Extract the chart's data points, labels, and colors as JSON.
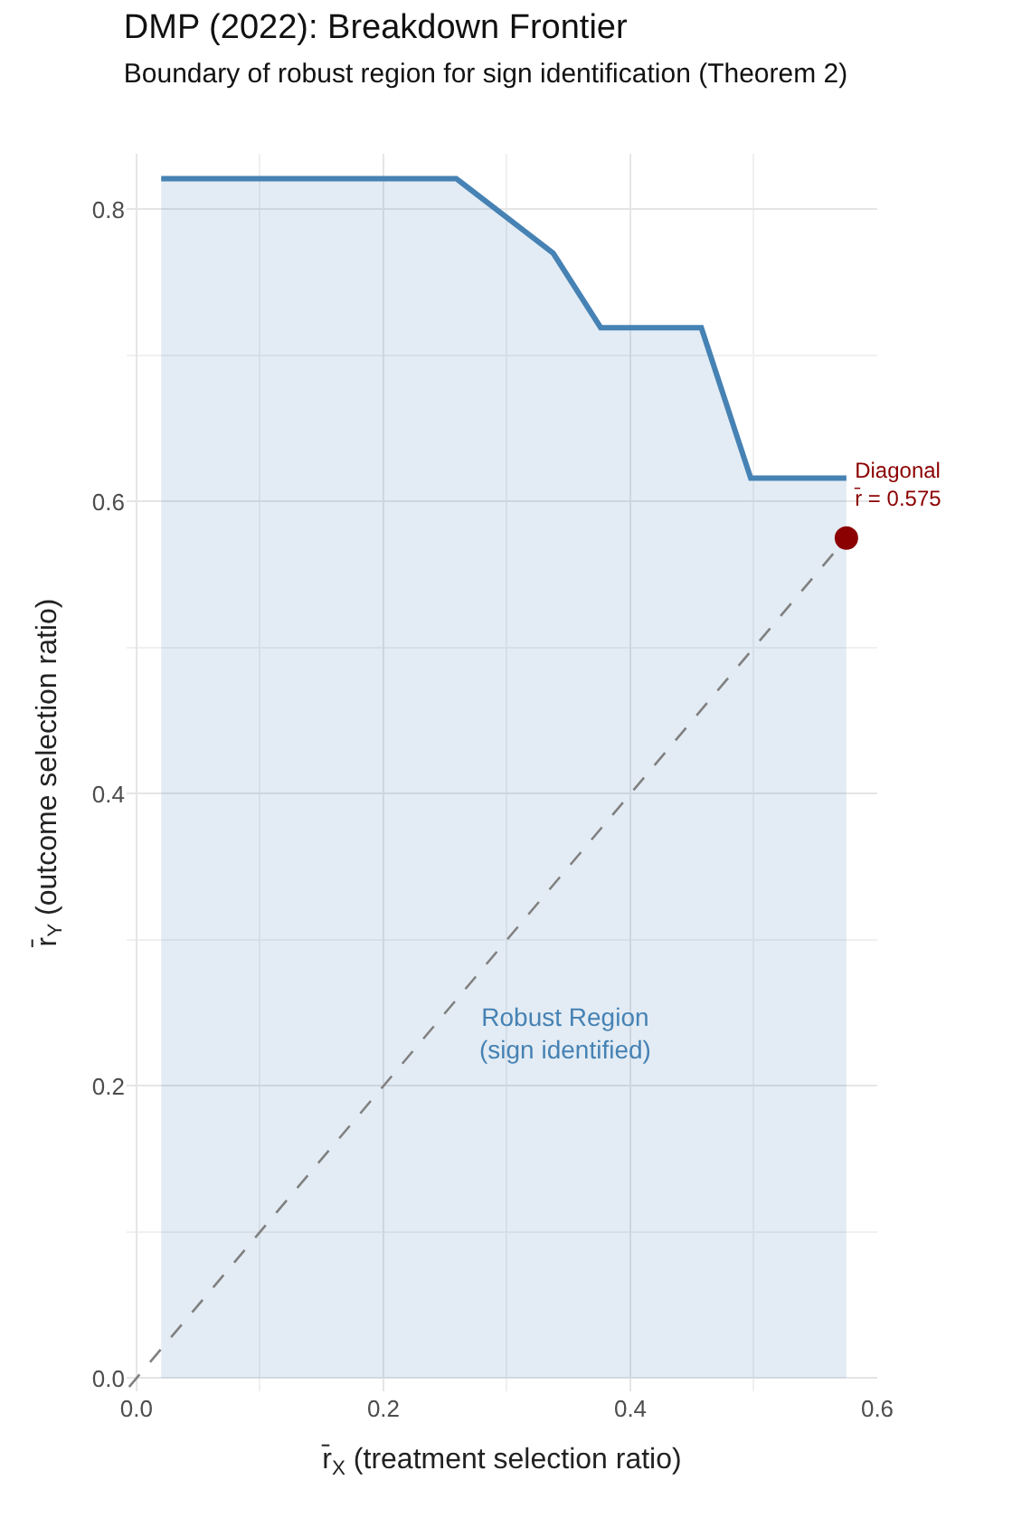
{
  "chart_data": {
    "type": "area",
    "title": "DMP (2022): Breakdown Frontier",
    "subtitle": "Boundary of robust region for sign identification (Theorem 2)",
    "xlabel": "r̄$_{X}$ (treatment selection ratio)",
    "ylabel": "r̄$_{Y}$ (outcome selection ratio)",
    "series": [
      {
        "color": "#4682b4",
        "x": [
          0.02,
          0.259,
          0.3375,
          0.376,
          0.4575,
          0.4975,
          0.575
        ],
        "values": [
          0.821,
          0.821,
          0.77,
          0.719,
          0.719,
          0.616,
          0.616
        ]
      },
      {
        "type": "line",
        "color": "#808080",
        "line_style": "dashed",
        "x": [
          -0.006,
          0.575
        ],
        "values": [
          -0.006,
          0.575
        ]
      },
      {
        "type": "scatter",
        "color": "#8b0000",
        "marker": "circle",
        "x": [
          0.575
        ],
        "values": [
          0.575
        ]
      }
    ],
    "xlim": [
      -0.008,
      0.6
    ],
    "ylim": [
      -0.009,
      0.838
    ],
    "xticks": [
      {
        "value": 0,
        "label": "0.0"
      },
      0.2,
      0.4,
      0.6
    ],
    "yticks": [
      {
        "value": 0,
        "label": "0.0"
      },
      0.2,
      0.4,
      0.6,
      0.8
    ],
    "grid": true,
    "annotations": [
      "Robust Region\n(sign identified)",
      {
        "text": "Diagonal\nr̄ = 0.575",
        "x": 0.575,
        "y": 0.575
      }
    ]
  }
}
